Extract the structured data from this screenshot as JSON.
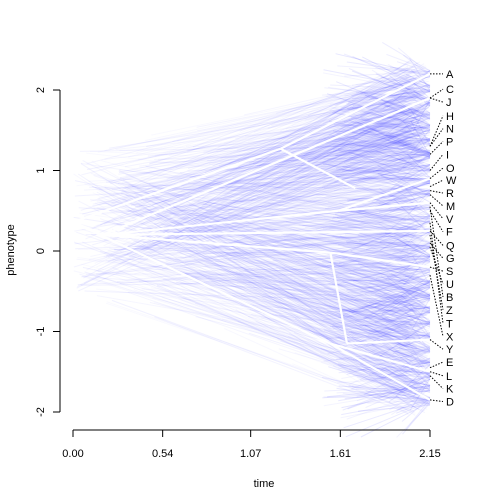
{
  "chart_data": {
    "type": "line",
    "title": "",
    "xlabel": "time",
    "ylabel": "phenotype",
    "xlim": [
      0,
      2.15
    ],
    "ylim": [
      -2,
      2.2
    ],
    "x_ticks": [
      "0.00",
      "0.54",
      "1.07",
      "1.61",
      "2.15"
    ],
    "x_tick_values": [
      0,
      0.54,
      1.07,
      1.61,
      2.15
    ],
    "y_ticks": [
      "-2",
      "-1",
      "0",
      "1",
      "2"
    ],
    "y_tick_values": [
      -2,
      -1,
      0,
      1,
      2
    ],
    "grid": false,
    "background_color": "#ffffff",
    "density_color": "#3333ff",
    "mean_line_color": "#ffffff",
    "root": {
      "x": 0,
      "y": 0.36
    },
    "branches": [
      {
        "from": [
          0,
          0.36
        ],
        "to": [
          1.25,
          1.27
        ]
      },
      {
        "from": [
          1.25,
          1.27
        ],
        "to": [
          2.15,
          2.2
        ]
      },
      {
        "from": [
          1.25,
          1.27
        ],
        "to": [
          1.7,
          0.78
        ]
      },
      {
        "from": [
          0,
          0.36
        ],
        "to": [
          0.18,
          0.2
        ]
      },
      {
        "from": [
          0.18,
          0.2
        ],
        "to": [
          2.15,
          1.9
        ]
      },
      {
        "from": [
          0.18,
          0.2
        ],
        "to": [
          1.6,
          0.5
        ]
      },
      {
        "from": [
          1.6,
          0.5
        ],
        "to": [
          2.15,
          0.9
        ]
      },
      {
        "from": [
          1.6,
          0.5
        ],
        "to": [
          2.15,
          0.6
        ]
      },
      {
        "from": [
          0.18,
          0.2
        ],
        "to": [
          2.15,
          0.25
        ]
      },
      {
        "from": [
          0.18,
          0.2
        ],
        "to": [
          1.55,
          -0.02
        ]
      },
      {
        "from": [
          1.55,
          -0.02
        ],
        "to": [
          2.15,
          -0.2
        ]
      },
      {
        "from": [
          1.55,
          -0.02
        ],
        "to": [
          1.65,
          -1.15
        ]
      },
      {
        "from": [
          1.65,
          -1.15
        ],
        "to": [
          2.15,
          -1.1
        ]
      },
      {
        "from": [
          0,
          0.36
        ],
        "to": [
          1.55,
          -1.15
        ]
      },
      {
        "from": [
          1.55,
          -1.15
        ],
        "to": [
          2.15,
          -1.85
        ]
      },
      {
        "from": [
          1.55,
          -1.15
        ],
        "to": [
          2.15,
          -1.5
        ]
      }
    ],
    "tips": [
      {
        "label": "A",
        "y": 2.2
      },
      {
        "label": "C",
        "y": 2.01
      },
      {
        "label": "J",
        "y": 1.85
      },
      {
        "label": "H",
        "y": 1.68
      },
      {
        "label": "N",
        "y": 1.52
      },
      {
        "label": "P",
        "y": 1.36
      },
      {
        "label": "I",
        "y": 1.2
      },
      {
        "label": "O",
        "y": 1.03
      },
      {
        "label": "W",
        "y": 0.88
      },
      {
        "label": "R",
        "y": 0.72
      },
      {
        "label": "M",
        "y": 0.56
      },
      {
        "label": "V",
        "y": 0.4
      },
      {
        "label": "F",
        "y": 0.24
      },
      {
        "label": "Q",
        "y": 0.07
      },
      {
        "label": "G",
        "y": -0.09
      },
      {
        "label": "S",
        "y": -0.25
      },
      {
        "label": "U",
        "y": -0.41
      },
      {
        "label": "B",
        "y": -0.57
      },
      {
        "label": "Z",
        "y": -0.73
      },
      {
        "label": "T",
        "y": -0.9
      },
      {
        "label": "X",
        "y": -1.06
      },
      {
        "label": "Y",
        "y": -1.22
      },
      {
        "label": "E",
        "y": -1.38
      },
      {
        "label": "L",
        "y": -1.55
      },
      {
        "label": "K",
        "y": -1.71
      },
      {
        "label": "D",
        "y": -1.87
      }
    ],
    "tip_branch_ends": [
      2.2,
      1.9,
      1.9,
      1.3,
      1.3,
      1.2,
      1.0,
      0.9,
      0.8,
      0.75,
      0.7,
      0.6,
      0.5,
      0.25,
      0.1,
      -0.2,
      0.05,
      0.55,
      0.2,
      0.35,
      -0.3,
      -1.1,
      -1.45,
      -1.5,
      -1.55,
      -1.85
    ]
  }
}
